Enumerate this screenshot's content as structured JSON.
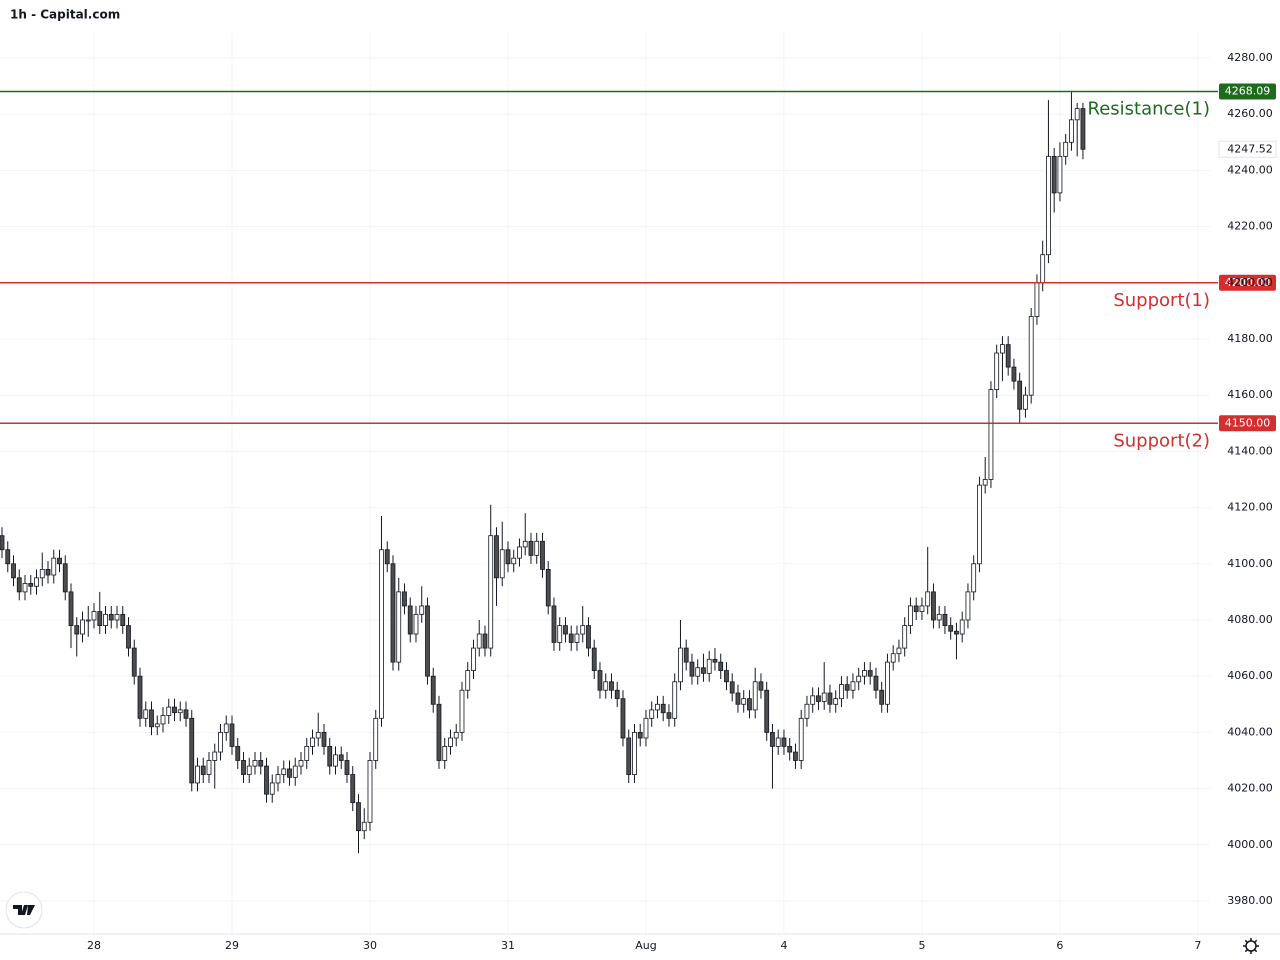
{
  "chart_data": {
    "type": "candlestick",
    "title": "1h - Capital.com",
    "up_color": "#ffffff",
    "down_color": "#4d4d4d",
    "outline_color": "#131722",
    "grid": true,
    "xlim": [
      -0.35,
      210.1
    ],
    "ylim": [
      3968.6,
      4288.9
    ],
    "xticks": [
      {
        "value": 16,
        "label": "28"
      },
      {
        "value": 40,
        "label": "29"
      },
      {
        "value": 64,
        "label": "30"
      },
      {
        "value": 88,
        "label": "31"
      },
      {
        "value": 112,
        "label": "Aug"
      },
      {
        "value": 136,
        "label": "4"
      },
      {
        "value": 160,
        "label": "5"
      },
      {
        "value": 184,
        "label": "6"
      },
      {
        "value": 208,
        "label": "7"
      }
    ],
    "yticks": [
      {
        "value": 3980,
        "label": "3980.00"
      },
      {
        "value": 4000,
        "label": "4000.00"
      },
      {
        "value": 4020,
        "label": "4020.00"
      },
      {
        "value": 4040,
        "label": "4040.00"
      },
      {
        "value": 4060,
        "label": "4060.00"
      },
      {
        "value": 4080,
        "label": "4080.00"
      },
      {
        "value": 4100,
        "label": "4100.00"
      },
      {
        "value": 4120,
        "label": "4120.00"
      },
      {
        "value": 4140,
        "label": "4140.00"
      },
      {
        "value": 4160,
        "label": "4160.00"
      },
      {
        "value": 4180,
        "label": "4180.00"
      },
      {
        "value": 4200,
        "label": "4200.00"
      },
      {
        "value": 4220,
        "label": "4220.00"
      },
      {
        "value": 4240,
        "label": "4240.00"
      },
      {
        "value": 4260,
        "label": "4260.00"
      },
      {
        "value": 4280,
        "label": "4280.00"
      }
    ],
    "levels": [
      {
        "name": "Resistance(1)",
        "value": 4268.09,
        "value_label": "4268.09",
        "color": "#1e6b1e"
      },
      {
        "name": "Support(1)",
        "value": 4200,
        "value_label": "4200.00",
        "color": "#d32f2f"
      },
      {
        "name": "Support(2)",
        "value": 4150,
        "value_label": "4150.00",
        "color": "#d32f2f"
      }
    ],
    "ohlc": [
      [
        4110,
        4113,
        4102,
        4105
      ],
      [
        4105,
        4108,
        4097,
        4100
      ],
      [
        4100,
        4103,
        4092,
        4095
      ],
      [
        4095,
        4098,
        4087,
        4090
      ],
      [
        4090,
        4096,
        4087,
        4093
      ],
      [
        4093,
        4096,
        4089,
        4092
      ],
      [
        4092,
        4098,
        4089,
        4095
      ],
      [
        4095,
        4104,
        4092,
        4098
      ],
      [
        4098,
        4101,
        4093,
        4096
      ],
      [
        4096,
        4105,
        4093,
        4102
      ],
      [
        4102,
        4105,
        4097,
        4100
      ],
      [
        4100,
        4103,
        4087,
        4090
      ],
      [
        4090,
        4093,
        4070,
        4078
      ],
      [
        4078,
        4081,
        4067,
        4075
      ],
      [
        4075,
        4083,
        4072,
        4080
      ],
      [
        4080,
        4085,
        4074,
        4080
      ],
      [
        4080,
        4086,
        4077,
        4083
      ],
      [
        4083,
        4090,
        4075,
        4078
      ],
      [
        4078,
        4085,
        4075,
        4082
      ],
      [
        4082,
        4085,
        4077,
        4080
      ],
      [
        4080,
        4085,
        4077,
        4082
      ],
      [
        4082,
        4085,
        4075,
        4078
      ],
      [
        4078,
        4081,
        4067,
        4070
      ],
      [
        4070,
        4073,
        4057,
        4060
      ],
      [
        4060,
        4063,
        4042,
        4045
      ],
      [
        4045,
        4051,
        4042,
        4048
      ],
      [
        4048,
        4051,
        4039,
        4042
      ],
      [
        4042,
        4046,
        4039,
        4043
      ],
      [
        4043,
        4049,
        4040,
        4046
      ],
      [
        4046,
        4052,
        4043,
        4049
      ],
      [
        4049,
        4052,
        4044,
        4047
      ],
      [
        4047,
        4051,
        4044,
        4048
      ],
      [
        4048,
        4051,
        4042,
        4045
      ],
      [
        4045,
        4048,
        4019,
        4022
      ],
      [
        4022,
        4031,
        4019,
        4028
      ],
      [
        4028,
        4031,
        4022,
        4025
      ],
      [
        4025,
        4033,
        4022,
        4030
      ],
      [
        4030,
        4036,
        4020,
        4033
      ],
      [
        4033,
        4043,
        4030,
        4040
      ],
      [
        4040,
        4046,
        4037,
        4043
      ],
      [
        4043,
        4046,
        4032,
        4035
      ],
      [
        4035,
        4038,
        4027,
        4030
      ],
      [
        4030,
        4033,
        4022,
        4025
      ],
      [
        4025,
        4031,
        4022,
        4028
      ],
      [
        4028,
        4033,
        4025,
        4030
      ],
      [
        4030,
        4033,
        4025,
        4028
      ],
      [
        4028,
        4031,
        4015,
        4018
      ],
      [
        4018,
        4025,
        4015,
        4022
      ],
      [
        4022,
        4028,
        4019,
        4025
      ],
      [
        4025,
        4030,
        4022,
        4027
      ],
      [
        4027,
        4030,
        4021,
        4024
      ],
      [
        4024,
        4031,
        4021,
        4028
      ],
      [
        4028,
        4033,
        4025,
        4030
      ],
      [
        4030,
        4038,
        4027,
        4035
      ],
      [
        4035,
        4041,
        4032,
        4038
      ],
      [
        4038,
        4047,
        4035,
        4040
      ],
      [
        4040,
        4043,
        4032,
        4035
      ],
      [
        4035,
        4038,
        4025,
        4028
      ],
      [
        4028,
        4035,
        4025,
        4032
      ],
      [
        4032,
        4035,
        4027,
        4030
      ],
      [
        4030,
        4033,
        4022,
        4025
      ],
      [
        4025,
        4028,
        4012,
        4015
      ],
      [
        4015,
        4018,
        3997,
        4005
      ],
      [
        4005,
        4013,
        4002,
        4008
      ],
      [
        4008,
        4033,
        4005,
        4030
      ],
      [
        4030,
        4048,
        4027,
        4045
      ],
      [
        4045,
        4117,
        4042,
        4105
      ],
      [
        4105,
        4108,
        4097,
        4100
      ],
      [
        4100,
        4103,
        4062,
        4065
      ],
      [
        4065,
        4095,
        4062,
        4090
      ],
      [
        4090,
        4093,
        4082,
        4085
      ],
      [
        4085,
        4088,
        4072,
        4075
      ],
      [
        4075,
        4085,
        4072,
        4082
      ],
      [
        4082,
        4092,
        4079,
        4085
      ],
      [
        4085,
        4088,
        4057,
        4060
      ],
      [
        4060,
        4063,
        4047,
        4050
      ],
      [
        4050,
        4053,
        4027,
        4030
      ],
      [
        4030,
        4038,
        4027,
        4035
      ],
      [
        4035,
        4041,
        4032,
        4038
      ],
      [
        4038,
        4043,
        4035,
        4040
      ],
      [
        4040,
        4058,
        4037,
        4055
      ],
      [
        4055,
        4065,
        4052,
        4062
      ],
      [
        4062,
        4073,
        4059,
        4070
      ],
      [
        4070,
        4080,
        4067,
        4075
      ],
      [
        4075,
        4078,
        4067,
        4070
      ],
      [
        4070,
        4121,
        4067,
        4110
      ],
      [
        4110,
        4113,
        4085,
        4095
      ],
      [
        4095,
        4115,
        4092,
        4105
      ],
      [
        4105,
        4108,
        4097,
        4100
      ],
      [
        4100,
        4105,
        4097,
        4102
      ],
      [
        4102,
        4109,
        4099,
        4106
      ],
      [
        4106,
        4118,
        4103,
        4108
      ],
      [
        4108,
        4111,
        4100,
        4103
      ],
      [
        4103,
        4111,
        4100,
        4108
      ],
      [
        4108,
        4111,
        4095,
        4098
      ],
      [
        4098,
        4101,
        4082,
        4085
      ],
      [
        4085,
        4088,
        4069,
        4072
      ],
      [
        4072,
        4081,
        4069,
        4078
      ],
      [
        4078,
        4081,
        4072,
        4075
      ],
      [
        4075,
        4078,
        4069,
        4072
      ],
      [
        4072,
        4078,
        4069,
        4075
      ],
      [
        4075,
        4085,
        4072,
        4078
      ],
      [
        4078,
        4081,
        4067,
        4070
      ],
      [
        4070,
        4073,
        4059,
        4062
      ],
      [
        4062,
        4065,
        4052,
        4055
      ],
      [
        4055,
        4061,
        4052,
        4058
      ],
      [
        4058,
        4061,
        4052,
        4055
      ],
      [
        4055,
        4058,
        4049,
        4052
      ],
      [
        4052,
        4055,
        4035,
        4038
      ],
      [
        4038,
        4041,
        4022,
        4025
      ],
      [
        4025,
        4043,
        4022,
        4040
      ],
      [
        4040,
        4043,
        4035,
        4038
      ],
      [
        4038,
        4048,
        4035,
        4045
      ],
      [
        4045,
        4051,
        4042,
        4048
      ],
      [
        4048,
        4053,
        4045,
        4050
      ],
      [
        4050,
        4053,
        4044,
        4047
      ],
      [
        4047,
        4050,
        4042,
        4045
      ],
      [
        4045,
        4061,
        4042,
        4058
      ],
      [
        4058,
        4080,
        4055,
        4070
      ],
      [
        4070,
        4073,
        4062,
        4065
      ],
      [
        4065,
        4068,
        4057,
        4060
      ],
      [
        4060,
        4066,
        4057,
        4063
      ],
      [
        4063,
        4068,
        4058,
        4061
      ],
      [
        4061,
        4069,
        4058,
        4066
      ],
      [
        4066,
        4070,
        4062,
        4065
      ],
      [
        4065,
        4068,
        4059,
        4062
      ],
      [
        4062,
        4065,
        4055,
        4058
      ],
      [
        4058,
        4061,
        4051,
        4054
      ],
      [
        4054,
        4057,
        4047,
        4050
      ],
      [
        4050,
        4055,
        4047,
        4052
      ],
      [
        4052,
        4055,
        4045,
        4048
      ],
      [
        4048,
        4063,
        4045,
        4058
      ],
      [
        4058,
        4061,
        4052,
        4055
      ],
      [
        4055,
        4058,
        4037,
        4040
      ],
      [
        4040,
        4043,
        4020,
        4035
      ],
      [
        4035,
        4041,
        4032,
        4038
      ],
      [
        4038,
        4041,
        4032,
        4035
      ],
      [
        4035,
        4038,
        4030,
        4033
      ],
      [
        4033,
        4036,
        4027,
        4030
      ],
      [
        4030,
        4048,
        4027,
        4045
      ],
      [
        4045,
        4053,
        4042,
        4050
      ],
      [
        4050,
        4056,
        4047,
        4053
      ],
      [
        4053,
        4056,
        4048,
        4051
      ],
      [
        4051,
        4065,
        4048,
        4054
      ],
      [
        4054,
        4057,
        4047,
        4050
      ],
      [
        4050,
        4055,
        4047,
        4052
      ],
      [
        4052,
        4060,
        4049,
        4057
      ],
      [
        4057,
        4060,
        4052,
        4055
      ],
      [
        4055,
        4061,
        4052,
        4058
      ],
      [
        4058,
        4063,
        4055,
        4060
      ],
      [
        4060,
        4065,
        4057,
        4062
      ],
      [
        4062,
        4065,
        4057,
        4060
      ],
      [
        4060,
        4063,
        4052,
        4055
      ],
      [
        4055,
        4058,
        4047,
        4050
      ],
      [
        4050,
        4068,
        4047,
        4065
      ],
      [
        4065,
        4071,
        4062,
        4068
      ],
      [
        4068,
        4073,
        4065,
        4070
      ],
      [
        4070,
        4081,
        4067,
        4078
      ],
      [
        4078,
        4088,
        4075,
        4085
      ],
      [
        4085,
        4088,
        4080,
        4083
      ],
      [
        4083,
        4088,
        4080,
        4085
      ],
      [
        4085,
        4106,
        4082,
        4090
      ],
      [
        4090,
        4093,
        4077,
        4080
      ],
      [
        4080,
        4085,
        4077,
        4082
      ],
      [
        4082,
        4085,
        4075,
        4078
      ],
      [
        4078,
        4081,
        4073,
        4076
      ],
      [
        4076,
        4079,
        4066,
        4075
      ],
      [
        4075,
        4083,
        4072,
        4080
      ],
      [
        4080,
        4093,
        4077,
        4090
      ],
      [
        4090,
        4103,
        4087,
        4100
      ],
      [
        4100,
        4131,
        4097,
        4128
      ],
      [
        4128,
        4138,
        4125,
        4130
      ],
      [
        4130,
        4165,
        4127,
        4162
      ],
      [
        4162,
        4178,
        4159,
        4175
      ],
      [
        4175,
        4181,
        4165,
        4178
      ],
      [
        4178,
        4181,
        4167,
        4170
      ],
      [
        4170,
        4173,
        4162,
        4165
      ],
      [
        4165,
        4168,
        4150,
        4155
      ],
      [
        4155,
        4163,
        4152,
        4160
      ],
      [
        4160,
        4191,
        4157,
        4188
      ],
      [
        4188,
        4203,
        4185,
        4200
      ],
      [
        4200,
        4215,
        4197,
        4210
      ],
      [
        4210,
        4265,
        4207,
        4245
      ],
      [
        4245,
        4248,
        4225,
        4232
      ],
      [
        4232,
        4250,
        4229,
        4245
      ],
      [
        4245,
        4253,
        4242,
        4250
      ],
      [
        4250,
        4268,
        4247,
        4258
      ],
      [
        4258,
        4264,
        4245,
        4262
      ],
      [
        4262,
        4264,
        4244,
        4247.52
      ]
    ]
  }
}
